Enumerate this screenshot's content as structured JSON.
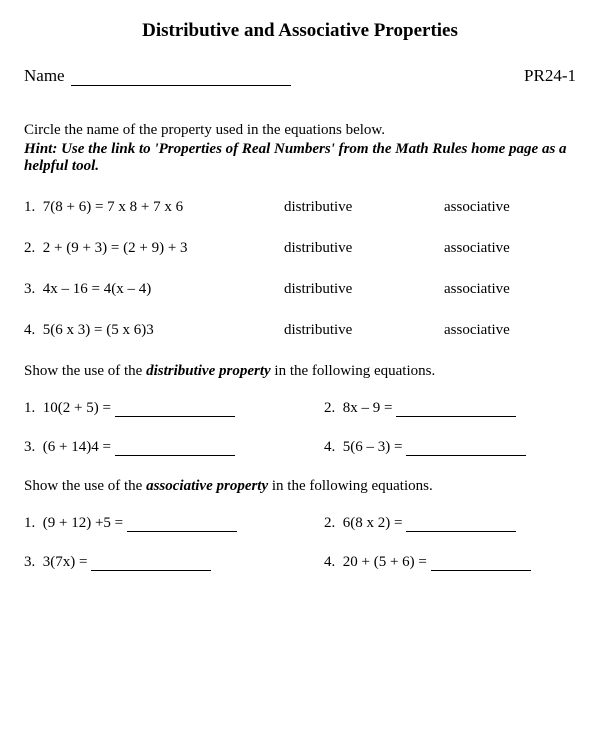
{
  "title": "Distributive and Associative Properties",
  "header": {
    "name_label": "Name",
    "code": "PR24-1"
  },
  "instructions": "Circle the name of the property used in the equations below.",
  "hint": "Hint: Use the link to 'Properties of Real Numbers' from the Math Rules home page as a helpful tool.",
  "choice_labels": {
    "distributive": "distributive",
    "associative": "associative"
  },
  "section1": {
    "items": [
      {
        "num": "1.",
        "eq": "7(8 + 6) = 7 x 8 + 7 x 6"
      },
      {
        "num": "2.",
        "eq": "2 + (9 + 3) = (2 + 9) + 3"
      },
      {
        "num": "3.",
        "eq": "4x – 16 = 4(x – 4)"
      },
      {
        "num": "4.",
        "eq": "5(6 x 3) = (5 x 6)3"
      }
    ]
  },
  "section2": {
    "prompt_pre": "Show the use of the ",
    "prompt_emph": "distributive property",
    "prompt_post": " in the following equations.",
    "items": [
      {
        "num": "1.",
        "eq": "10(2 + 5) ="
      },
      {
        "num": "2.",
        "eq": "8x – 9 ="
      },
      {
        "num": "3.",
        "eq": "(6 + 14)4 ="
      },
      {
        "num": "4.",
        "eq": "5(6 – 3) ="
      }
    ]
  },
  "section3": {
    "prompt_pre": "Show the use of the ",
    "prompt_emph": "associative property",
    "prompt_post": " in the following equations.",
    "items": [
      {
        "num": "1.",
        "eq": "(9 + 12) +5 ="
      },
      {
        "num": "2.",
        "eq": "6(8 x 2) ="
      },
      {
        "num": "3.",
        "eq": "3(7x) ="
      },
      {
        "num": "4.",
        "eq": "20 + (5 + 6) ="
      }
    ]
  },
  "colors": {
    "text": "#000000",
    "background": "#ffffff",
    "line": "#000000"
  },
  "typography": {
    "family": "Times New Roman",
    "title_size_pt": 19,
    "body_size_pt": 15,
    "header_size_pt": 17
  }
}
